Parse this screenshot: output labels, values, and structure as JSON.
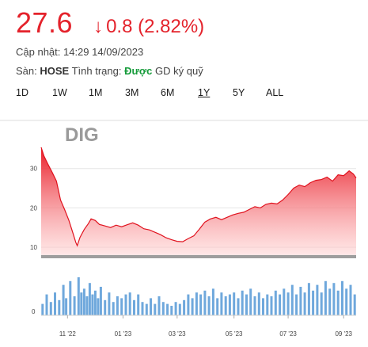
{
  "quote": {
    "price": "27.6",
    "change": "0.8 (2.82%)",
    "updated": "Cập nhật: 14:29 14/09/2023",
    "exchange_label": "Sàn:",
    "exchange": "HOSE",
    "status_label": "Tình trạng:",
    "status": "Được",
    "status_suffix": "GD ký quỹ",
    "accent_color": "#e4222b",
    "status_color": "#159b3a"
  },
  "ranges": [
    {
      "label": "1D",
      "active": false
    },
    {
      "label": "1W",
      "active": false
    },
    {
      "label": "1M",
      "active": false
    },
    {
      "label": "3M",
      "active": false
    },
    {
      "label": "6M",
      "active": false
    },
    {
      "label": "1Y",
      "active": true
    },
    {
      "label": "5Y",
      "active": false
    },
    {
      "label": "ALL",
      "active": false
    }
  ],
  "chart_data": {
    "type": "area",
    "title": "DIG",
    "price_axis": {
      "ticks": [
        10,
        20,
        30
      ],
      "range": [
        8,
        39
      ]
    },
    "volume_axis": {
      "ticks": [
        0
      ]
    },
    "x_tick_labels": [
      "11 '22",
      "01 '23",
      "03 '23",
      "05 '23",
      "07 '23",
      "09 '23"
    ],
    "x_tick_positions": [
      6.15,
      8.15,
      10.1,
      12.15,
      14.1,
      16.1
    ],
    "x_range": [
      5.2,
      16.55
    ],
    "series": [
      {
        "points": [
          [
            5.2,
            35.4
          ],
          [
            5.3,
            33.2
          ],
          [
            5.45,
            31.0
          ],
          [
            5.6,
            29.0
          ],
          [
            5.75,
            26.8
          ],
          [
            5.9,
            22.0
          ],
          [
            6.05,
            19.5
          ],
          [
            6.2,
            16.8
          ],
          [
            6.35,
            13.5
          ],
          [
            6.45,
            11.2
          ],
          [
            6.5,
            10.4
          ],
          [
            6.6,
            12.5
          ],
          [
            6.75,
            14.5
          ],
          [
            6.9,
            16.0
          ],
          [
            7.0,
            17.2
          ],
          [
            7.15,
            16.8
          ],
          [
            7.3,
            15.8
          ],
          [
            7.5,
            15.4
          ],
          [
            7.7,
            15.0
          ],
          [
            7.9,
            15.6
          ],
          [
            8.1,
            15.2
          ],
          [
            8.3,
            15.7
          ],
          [
            8.5,
            16.2
          ],
          [
            8.7,
            15.6
          ],
          [
            8.9,
            14.7
          ],
          [
            9.1,
            14.4
          ],
          [
            9.3,
            13.8
          ],
          [
            9.5,
            13.2
          ],
          [
            9.7,
            12.4
          ],
          [
            9.9,
            11.9
          ],
          [
            10.1,
            11.5
          ],
          [
            10.3,
            11.4
          ],
          [
            10.5,
            12.2
          ],
          [
            10.7,
            12.9
          ],
          [
            10.9,
            14.6
          ],
          [
            11.1,
            16.4
          ],
          [
            11.3,
            17.2
          ],
          [
            11.5,
            17.6
          ],
          [
            11.7,
            17.0
          ],
          [
            11.9,
            17.6
          ],
          [
            12.1,
            18.2
          ],
          [
            12.3,
            18.6
          ],
          [
            12.5,
            18.9
          ],
          [
            12.7,
            19.6
          ],
          [
            12.9,
            20.3
          ],
          [
            13.1,
            20.0
          ],
          [
            13.3,
            20.9
          ],
          [
            13.5,
            21.2
          ],
          [
            13.7,
            21.0
          ],
          [
            13.9,
            22.0
          ],
          [
            14.1,
            23.4
          ],
          [
            14.3,
            25.0
          ],
          [
            14.5,
            25.8
          ],
          [
            14.7,
            25.4
          ],
          [
            14.9,
            26.4
          ],
          [
            15.1,
            27.0
          ],
          [
            15.3,
            27.2
          ],
          [
            15.5,
            27.8
          ],
          [
            15.7,
            26.8
          ],
          [
            15.9,
            28.4
          ],
          [
            16.1,
            28.2
          ],
          [
            16.3,
            29.4
          ],
          [
            16.45,
            28.6
          ],
          [
            16.55,
            27.6
          ]
        ]
      }
    ],
    "volume": [
      [
        5.25,
        0.3
      ],
      [
        5.4,
        0.55
      ],
      [
        5.55,
        0.35
      ],
      [
        5.7,
        0.6
      ],
      [
        5.85,
        0.4
      ],
      [
        6.0,
        0.8
      ],
      [
        6.1,
        0.45
      ],
      [
        6.25,
        0.9
      ],
      [
        6.4,
        0.5
      ],
      [
        6.55,
        1.0
      ],
      [
        6.65,
        0.6
      ],
      [
        6.75,
        0.7
      ],
      [
        6.85,
        0.5
      ],
      [
        6.95,
        0.85
      ],
      [
        7.05,
        0.55
      ],
      [
        7.15,
        0.65
      ],
      [
        7.25,
        0.45
      ],
      [
        7.35,
        0.75
      ],
      [
        7.5,
        0.4
      ],
      [
        7.65,
        0.6
      ],
      [
        7.8,
        0.35
      ],
      [
        7.95,
        0.5
      ],
      [
        8.1,
        0.45
      ],
      [
        8.25,
        0.55
      ],
      [
        8.4,
        0.6
      ],
      [
        8.55,
        0.4
      ],
      [
        8.7,
        0.55
      ],
      [
        8.85,
        0.35
      ],
      [
        9.0,
        0.3
      ],
      [
        9.15,
        0.45
      ],
      [
        9.3,
        0.3
      ],
      [
        9.45,
        0.5
      ],
      [
        9.6,
        0.35
      ],
      [
        9.75,
        0.3
      ],
      [
        9.9,
        0.25
      ],
      [
        10.05,
        0.35
      ],
      [
        10.2,
        0.3
      ],
      [
        10.35,
        0.4
      ],
      [
        10.5,
        0.55
      ],
      [
        10.65,
        0.45
      ],
      [
        10.8,
        0.6
      ],
      [
        10.95,
        0.55
      ],
      [
        11.1,
        0.65
      ],
      [
        11.25,
        0.5
      ],
      [
        11.4,
        0.7
      ],
      [
        11.55,
        0.45
      ],
      [
        11.7,
        0.6
      ],
      [
        11.85,
        0.5
      ],
      [
        12.0,
        0.55
      ],
      [
        12.15,
        0.6
      ],
      [
        12.3,
        0.45
      ],
      [
        12.45,
        0.65
      ],
      [
        12.6,
        0.55
      ],
      [
        12.75,
        0.7
      ],
      [
        12.9,
        0.5
      ],
      [
        13.05,
        0.6
      ],
      [
        13.2,
        0.45
      ],
      [
        13.35,
        0.55
      ],
      [
        13.5,
        0.5
      ],
      [
        13.65,
        0.65
      ],
      [
        13.8,
        0.55
      ],
      [
        13.95,
        0.7
      ],
      [
        14.1,
        0.6
      ],
      [
        14.25,
        0.8
      ],
      [
        14.4,
        0.55
      ],
      [
        14.55,
        0.75
      ],
      [
        14.7,
        0.6
      ],
      [
        14.85,
        0.85
      ],
      [
        15.0,
        0.65
      ],
      [
        15.15,
        0.8
      ],
      [
        15.3,
        0.6
      ],
      [
        15.45,
        0.9
      ],
      [
        15.6,
        0.7
      ],
      [
        15.75,
        0.85
      ],
      [
        15.9,
        0.65
      ],
      [
        16.05,
        0.9
      ],
      [
        16.2,
        0.7
      ],
      [
        16.35,
        0.8
      ],
      [
        16.5,
        0.55
      ]
    ]
  }
}
